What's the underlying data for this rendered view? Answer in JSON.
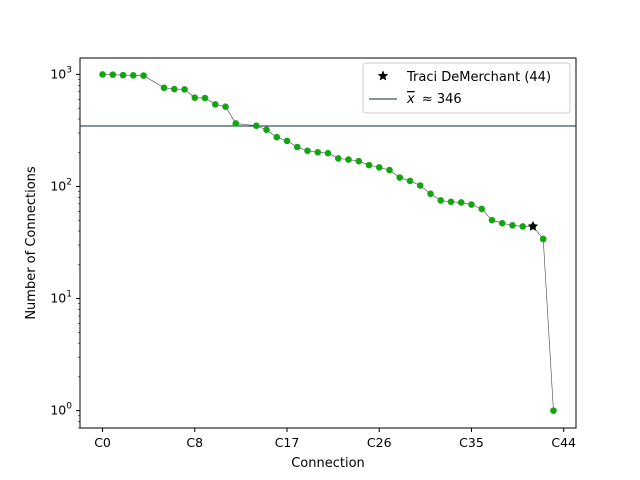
{
  "chart_data": {
    "type": "line",
    "title": "",
    "xlabel": "Connection",
    "ylabel": "Number of Connections",
    "yscale": "log",
    "ylim": [
      0.7,
      1400
    ],
    "xlim": [
      -2.2,
      46.2
    ],
    "x_ticks": [
      {
        "pos": 0,
        "label": "C0"
      },
      {
        "pos": 9,
        "label": "C8"
      },
      {
        "pos": 18,
        "label": "C17"
      },
      {
        "pos": 27,
        "label": "C26"
      },
      {
        "pos": 36,
        "label": "C35"
      },
      {
        "pos": 45,
        "label": "C44"
      }
    ],
    "y_ticks": [
      {
        "value": 1,
        "base": "10",
        "exp": "0"
      },
      {
        "value": 10,
        "base": "10",
        "exp": "1"
      },
      {
        "value": 100,
        "base": "10",
        "exp": "2"
      },
      {
        "value": 1000,
        "base": "10",
        "exp": "3"
      }
    ],
    "grid": false,
    "legend": {
      "placement": "top-right",
      "entries": [
        {
          "label": "Traci DeMerchant (44)",
          "marker": "star"
        },
        {
          "label": "$\\overline{x} \\approx 346$",
          "mean_symbol": "x",
          "mean_text": "≈ 346",
          "marker": "line"
        }
      ]
    },
    "series": [
      {
        "color": "#11a611",
        "x": [
          0,
          1,
          2,
          3,
          4,
          6,
          7,
          8,
          9,
          10,
          11,
          12,
          13,
          15,
          16,
          17,
          18,
          19,
          20,
          21,
          22,
          23,
          24,
          25,
          26,
          27,
          28,
          29,
          30,
          31,
          32,
          33,
          34,
          35,
          36,
          37,
          38,
          39,
          40,
          41,
          42,
          43,
          44
        ],
        "values": [
          998,
          995,
          985,
          980,
          975,
          760,
          740,
          735,
          620,
          615,
          540,
          515,
          365,
          348,
          320,
          275,
          255,
          225,
          208,
          202,
          198,
          178,
          174,
          168,
          155,
          148,
          140,
          120,
          112,
          102,
          86,
          75,
          73,
          72,
          69,
          63,
          50,
          47,
          45,
          44,
          44,
          34,
          1
        ]
      }
    ],
    "highlight": {
      "x": 42,
      "value": 44,
      "label": "Traci DeMerchant (44)",
      "color": "#000000"
    },
    "mean": {
      "value": 346,
      "label": "x̄ ≈ 346",
      "color": "#0b2a3a"
    }
  }
}
